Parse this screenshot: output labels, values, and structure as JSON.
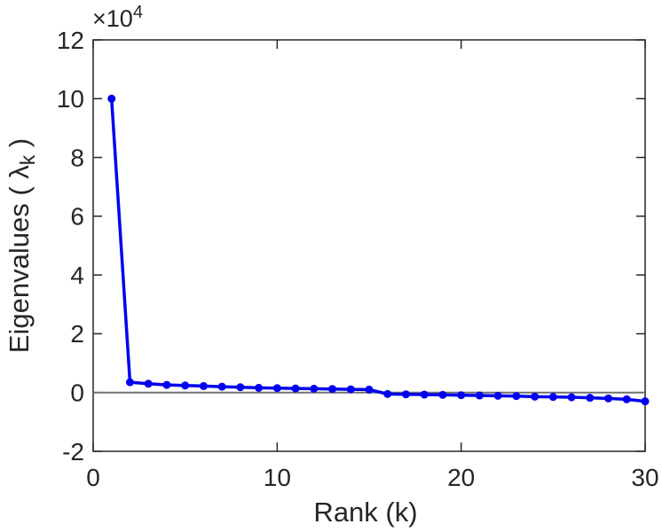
{
  "chart_data": {
    "type": "line",
    "title": "",
    "xlabel": "Rank (k)",
    "ylabel_main": "Eigenvalues ( λ",
    "ylabel_sub": "k",
    "ylabel_end": " )",
    "y_exponent_base": "×10",
    "y_exponent_power": "4",
    "x": [
      1,
      2,
      3,
      4,
      5,
      6,
      7,
      8,
      9,
      10,
      11,
      12,
      13,
      14,
      15,
      16,
      17,
      18,
      19,
      20,
      21,
      22,
      23,
      24,
      25,
      26,
      27,
      28,
      29,
      30
    ],
    "values_e4": [
      10.0,
      0.35,
      0.3,
      0.26,
      0.24,
      0.22,
      0.2,
      0.18,
      0.16,
      0.15,
      0.14,
      0.13,
      0.12,
      0.11,
      0.1,
      -0.05,
      -0.06,
      -0.07,
      -0.08,
      -0.09,
      -0.1,
      -0.11,
      -0.12,
      -0.14,
      -0.15,
      -0.16,
      -0.18,
      -0.2,
      -0.23,
      -0.3
    ],
    "y_unit_multiplier": 10000,
    "xlim": [
      0,
      30
    ],
    "ylim_e4": [
      -2,
      12
    ],
    "xticks": [
      0,
      10,
      20,
      30
    ],
    "yticks_e4": [
      -2,
      0,
      2,
      4,
      6,
      8,
      10,
      12
    ],
    "zero_reference_line_e4": 0,
    "grid": false,
    "legend": null,
    "line_color": "#0000f0",
    "axis_color": "#262626",
    "zero_line_color": "#707070"
  }
}
